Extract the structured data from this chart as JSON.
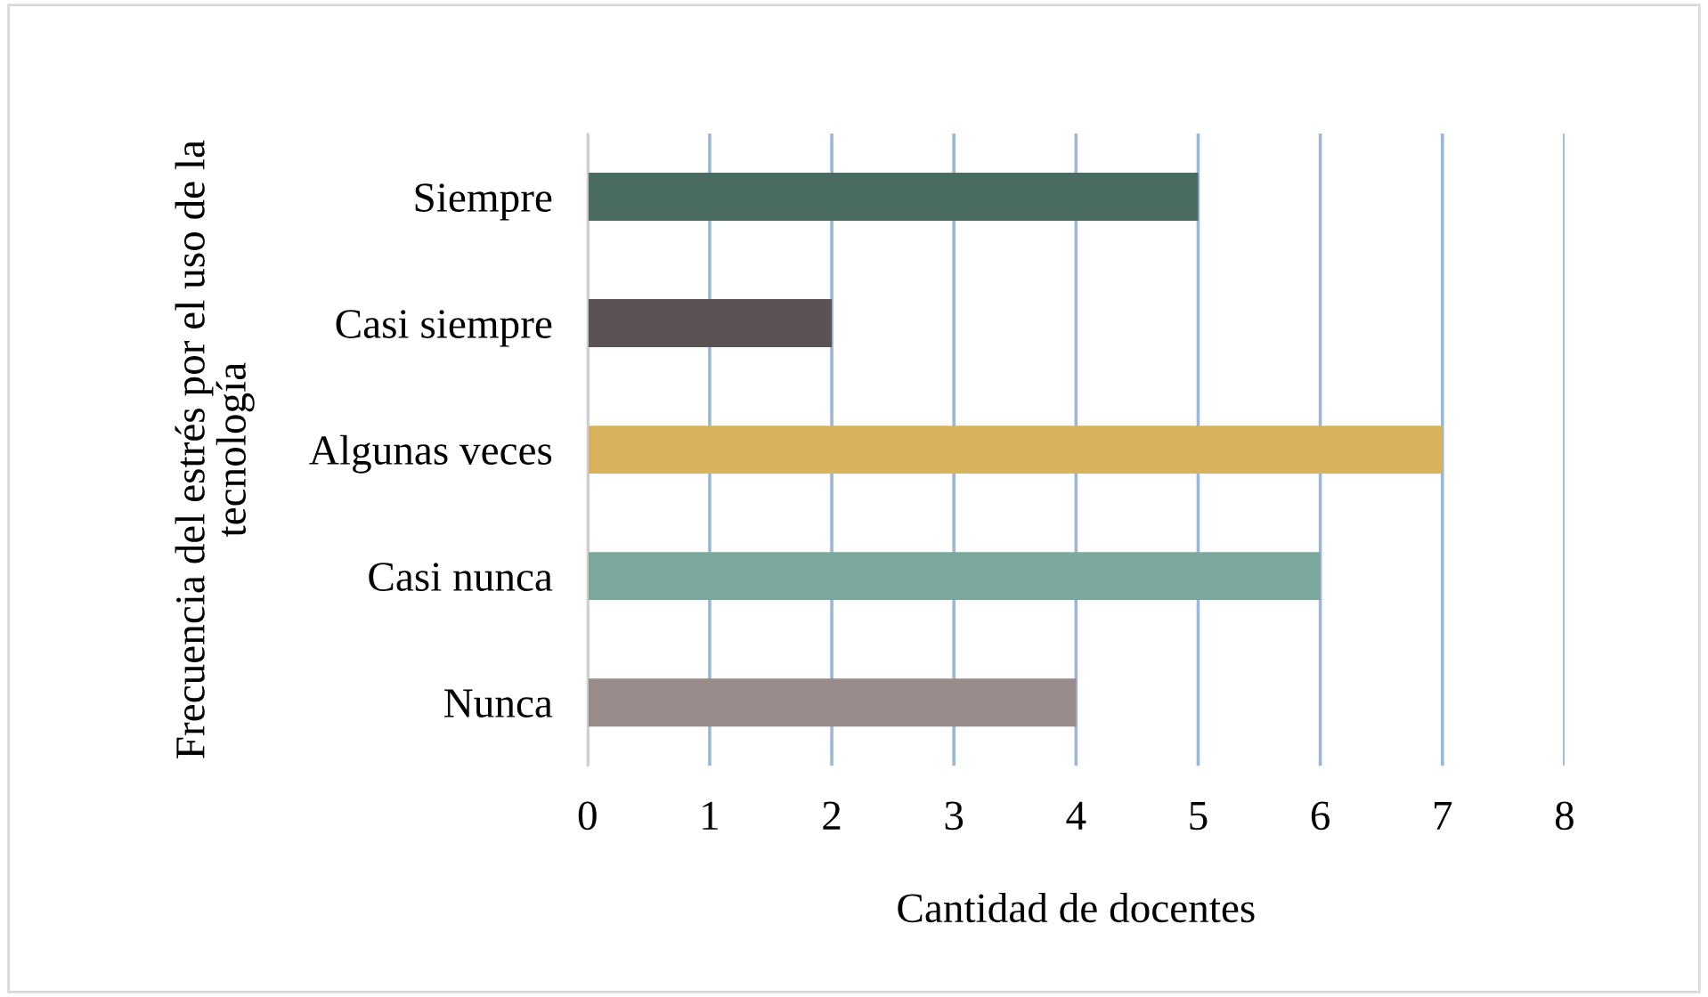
{
  "chart_data": {
    "type": "bar",
    "orientation": "horizontal",
    "categories": [
      "Siempre",
      "Casi siempre",
      "Algunas veces",
      "Casi nunca",
      "Nunca"
    ],
    "values": [
      5,
      2,
      7,
      6,
      4
    ],
    "colors": [
      "#4a6b60",
      "#5b5254",
      "#d9b25e",
      "#7ba89c",
      "#9a8c8a"
    ],
    "xlabel": "Cantidad de docentes",
    "ylabel": "Frecuencia del estrés por el uso de la\ntecnología",
    "xlim": [
      0,
      8
    ],
    "xticks": [
      0,
      1,
      2,
      3,
      4,
      5,
      6,
      7,
      8
    ],
    "grid": "x",
    "legend": false
  }
}
